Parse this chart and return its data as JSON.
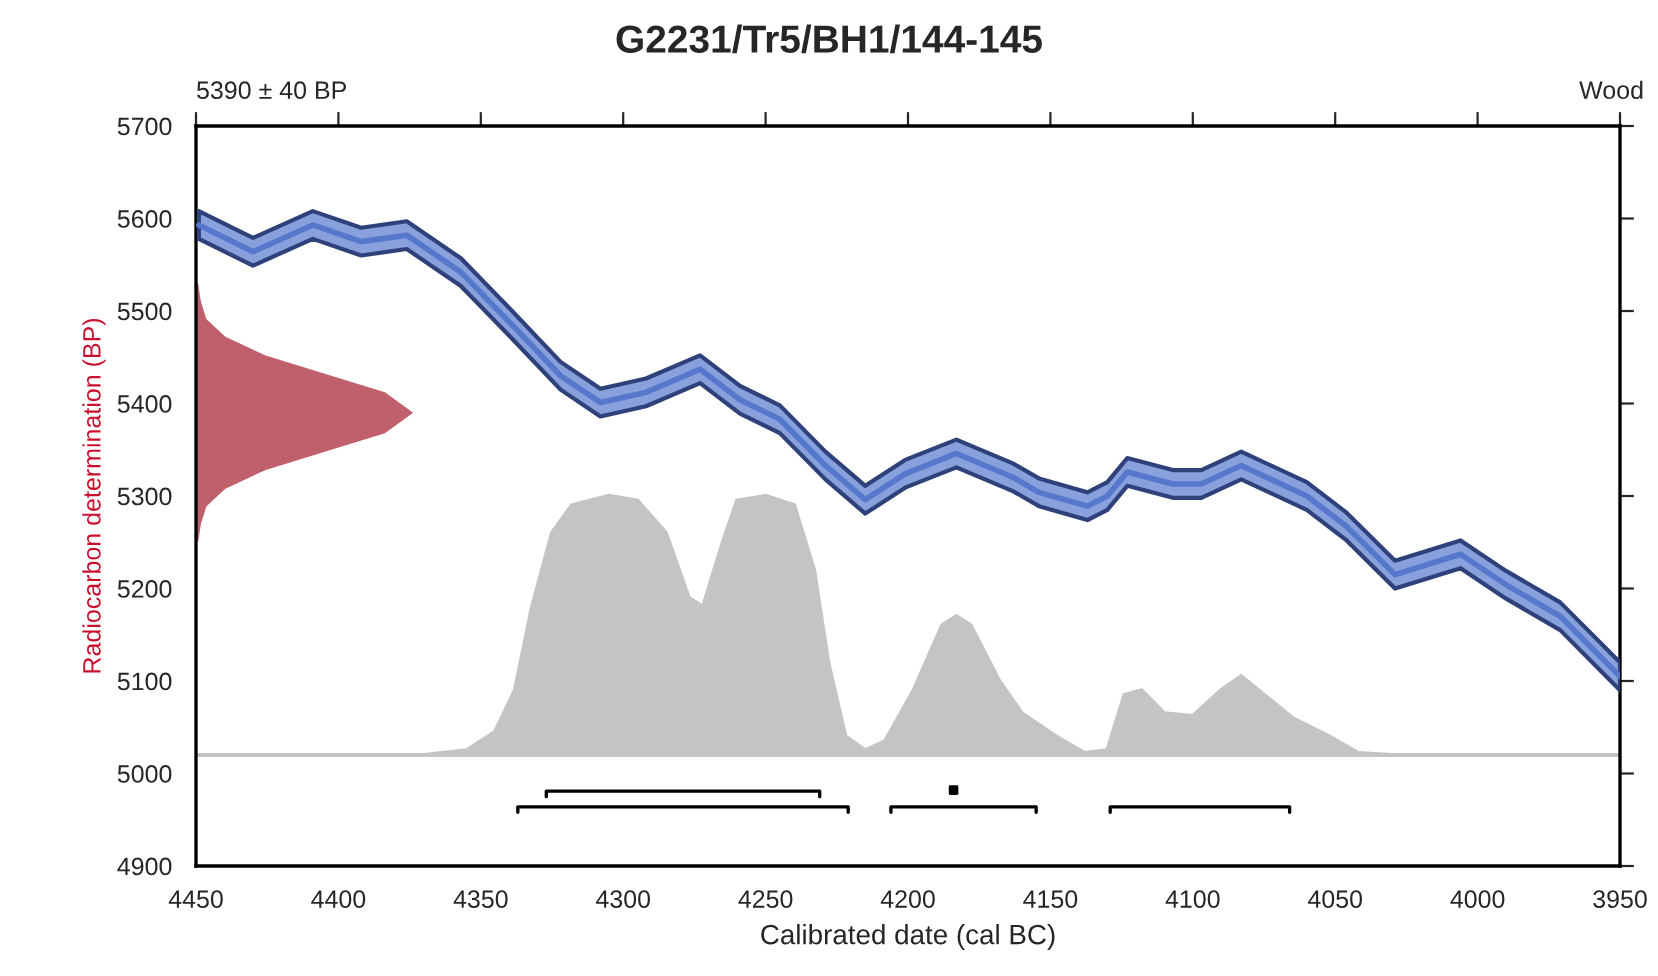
{
  "chart_data": {
    "type": "line",
    "title": "G2231/Tr5/BH1/144-145",
    "xlabel": "Calibrated date (cal BC)",
    "ylabel": "Radiocarbon determination (BP)",
    "annotations": [
      "5390 ± 40 BP",
      "Wood"
    ],
    "xlim": [
      4450,
      3950
    ],
    "xticks": [
      4450,
      4400,
      4350,
      4300,
      4250,
      4200,
      4150,
      4100,
      4050,
      4000,
      3950
    ],
    "ylim": [
      4900,
      5700
    ],
    "yticks": [
      4900,
      5000,
      5100,
      5200,
      5300,
      5400,
      5500,
      5600,
      5700
    ],
    "grid": false,
    "legend": false,
    "series": [
      {
        "type": "area",
        "color": "#c4c4c4",
        "x": [
          4450,
          4370,
          4355,
          4345,
          4338,
          4332,
          4325,
          4318,
          4305,
          4295,
          4285,
          4277,
          4272,
          4265,
          4260,
          4250,
          4240,
          4233,
          4228,
          4222,
          4215,
          4208,
          4198,
          4188,
          4183,
          4178,
          4168,
          4160,
          4148,
          4138,
          4130,
          4124,
          4118,
          4110,
          4100,
          4090,
          4083,
          4075,
          4065,
          4052,
          4042,
          4030,
          3950
        ],
        "values": [
          5020,
          5020,
          5025,
          5045,
          5090,
          5180,
          5260,
          5290,
          5300,
          5295,
          5260,
          5190,
          5180,
          5250,
          5295,
          5300,
          5290,
          5220,
          5120,
          5040,
          5025,
          5035,
          5090,
          5160,
          5170,
          5160,
          5100,
          5065,
          5040,
          5022,
          5025,
          5085,
          5090,
          5065,
          5062,
          5090,
          5105,
          5085,
          5060,
          5040,
          5022,
          5020,
          5020
        ]
      },
      {
        "type": "area",
        "color": "#c0606c",
        "x": [
          4450,
          4449,
          4447,
          4440,
          4426,
          4405,
          4384,
          4375,
          4384,
          4405,
          4426,
          4440,
          4447,
          4449,
          4450
        ],
        "values": [
          5250,
          5270,
          5290,
          5310,
          5330,
          5350,
          5370,
          5390,
          5410,
          5430,
          5450,
          5470,
          5490,
          5510,
          5530
        ]
      },
      {
        "color": "#5577cc",
        "x": [
          4449,
          4430,
          4409,
          4392,
          4376,
          4357,
          4339,
          4322,
          4308,
          4292,
          4273,
          4259,
          4245,
          4229,
          4215,
          4201,
          4183,
          4163,
          4154,
          4137,
          4130,
          4123,
          4107,
          4097,
          4083,
          4060,
          4046,
          4029,
          4006,
          3990,
          3971,
          3950
        ],
        "values": [
          5593,
          5564,
          5593,
          5575,
          5582,
          5542,
          5485,
          5430,
          5401,
          5412,
          5437,
          5404,
          5383,
          5333,
          5296,
          5324,
          5346,
          5320,
          5304,
          5289,
          5300,
          5326,
          5313,
          5313,
          5333,
          5300,
          5267,
          5215,
          5237,
          5204,
          5170,
          5105
        ],
        "lower": [
          5578,
          5549,
          5578,
          5560,
          5567,
          5527,
          5470,
          5415,
          5386,
          5397,
          5422,
          5389,
          5368,
          5318,
          5281,
          5309,
          5331,
          5305,
          5289,
          5274,
          5285,
          5311,
          5298,
          5298,
          5318,
          5285,
          5252,
          5200,
          5222,
          5189,
          5155,
          5090
        ],
        "upper": [
          5608,
          5579,
          5608,
          5590,
          5597,
          5557,
          5500,
          5445,
          5416,
          5427,
          5452,
          5419,
          5398,
          5348,
          5311,
          5339,
          5361,
          5335,
          5319,
          5304,
          5315,
          5341,
          5328,
          5328,
          5348,
          5315,
          5282,
          5230,
          5252,
          5219,
          5185,
          5120
        ]
      },
      {
        "color": "#000000",
        "x": [
          4327,
          4327,
          4231,
          4231,
          null,
          4337,
          4337,
          4221,
          4221,
          null,
          4206,
          4206,
          4155,
          4155,
          null,
          4129,
          4129,
          4066,
          4066
        ],
        "values": [
          4975,
          4981,
          4981,
          4975,
          null,
          4958,
          4964,
          4964,
          4958,
          null,
          4958,
          4964,
          4964,
          4958,
          null,
          4958,
          4964,
          4964,
          4958
        ]
      },
      {
        "type": "scatter",
        "color": "#000000",
        "marker": "square",
        "x": [
          4184
        ],
        "values": [
          4982
        ]
      }
    ]
  }
}
